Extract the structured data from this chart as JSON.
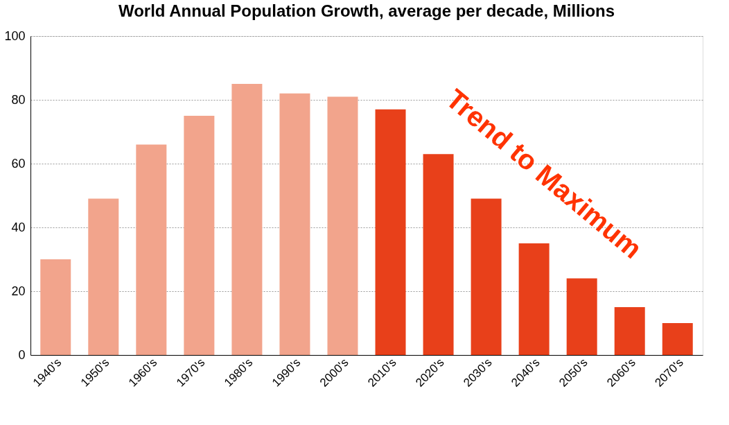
{
  "chart_data": {
    "type": "bar",
    "title": "World Annual Population Growth, average per decade, Millions",
    "categories": [
      "1940's",
      "1950's",
      "1960's",
      "1970's",
      "1980's",
      "1990's",
      "2000's",
      "2010's",
      "2020's",
      "2030's",
      "2040's",
      "2050's",
      "2060's",
      "2070's"
    ],
    "values": [
      30,
      49,
      66,
      75,
      85,
      82,
      81,
      77,
      63,
      49,
      35,
      24,
      15,
      10
    ],
    "colors": [
      "#f2a48c",
      "#f2a48c",
      "#f2a48c",
      "#f2a48c",
      "#f2a48c",
      "#f2a48c",
      "#f2a48c",
      "#e8401a",
      "#e8401a",
      "#e8401a",
      "#e8401a",
      "#e8401a",
      "#e8401a",
      "#e8401a"
    ],
    "ylim": [
      0,
      100
    ],
    "yticks": [
      0,
      20,
      40,
      60,
      80,
      100
    ],
    "grid": "y",
    "annotations": [
      "Trend to Maximum"
    ]
  }
}
